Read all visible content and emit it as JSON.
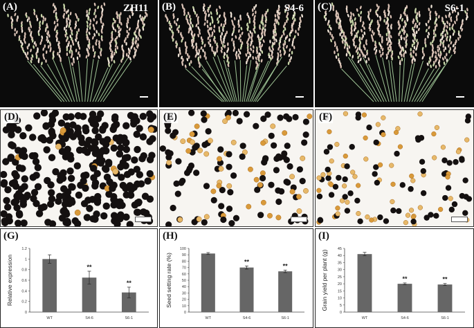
{
  "panels": {
    "A": {
      "label": "(A)",
      "genotype": "ZH11"
    },
    "B": {
      "label": "(B)",
      "genotype": "S4-6"
    },
    "C": {
      "label": "(C)",
      "genotype": "S6-1"
    },
    "D": {
      "label": "(D)"
    },
    "E": {
      "label": "(E)"
    },
    "F": {
      "label": "(F)"
    },
    "G": {
      "label": "(G)"
    },
    "H": {
      "label": "(H)"
    },
    "I": {
      "label": "(I)"
    }
  },
  "colors": {
    "bar": "#666666",
    "photo_bg": "#0b0b0b",
    "stained_pollen": "#141010",
    "unstained_pollen": "#d99a3a"
  },
  "chart_data": [
    {
      "type": "bar",
      "categories": [
        "WT",
        "S4-6",
        "S6-1"
      ],
      "values": [
        1.0,
        0.65,
        0.37
      ],
      "errors": [
        0.08,
        0.12,
        0.1
      ],
      "significance": [
        "",
        "**",
        "**"
      ],
      "ylabel": "Relative expression",
      "ylim": [
        0,
        1.2
      ],
      "yticks": [
        0,
        0.2,
        0.4,
        0.6,
        0.8,
        1,
        1.2
      ],
      "ytick_labels": [
        "0",
        "0.2",
        "0.4",
        "0.6",
        "0.8",
        "1",
        "1.2"
      ],
      "grid": false
    },
    {
      "type": "bar",
      "categories": [
        "WT",
        "S4-6",
        "S6-1"
      ],
      "values": [
        92,
        70,
        64
      ],
      "errors": [
        1.5,
        2.5,
        2
      ],
      "significance": [
        "",
        "**",
        "**"
      ],
      "ylabel": "Seed setting rate (%)",
      "ylim": [
        0,
        100
      ],
      "yticks": [
        0,
        10,
        20,
        30,
        40,
        50,
        60,
        70,
        80,
        90,
        100
      ],
      "ytick_labels": [
        "0",
        "10",
        "20",
        "30",
        "40",
        "50",
        "60",
        "70",
        "80",
        "90",
        "100"
      ],
      "grid": false
    },
    {
      "type": "bar",
      "categories": [
        "WT",
        "S4-6",
        "S6-1"
      ],
      "values": [
        41,
        20,
        19.5
      ],
      "errors": [
        1.2,
        0.6,
        0.7
      ],
      "significance": [
        "",
        "**",
        "**"
      ],
      "ylabel": "Grain yield per plant (g)",
      "ylim": [
        0,
        45
      ],
      "yticks": [
        0,
        5,
        10,
        15,
        20,
        25,
        30,
        35,
        40,
        45
      ],
      "ytick_labels": [
        "0",
        "5",
        "10",
        "15",
        "20",
        "25",
        "30",
        "35",
        "40",
        "45"
      ],
      "grid": false
    }
  ]
}
